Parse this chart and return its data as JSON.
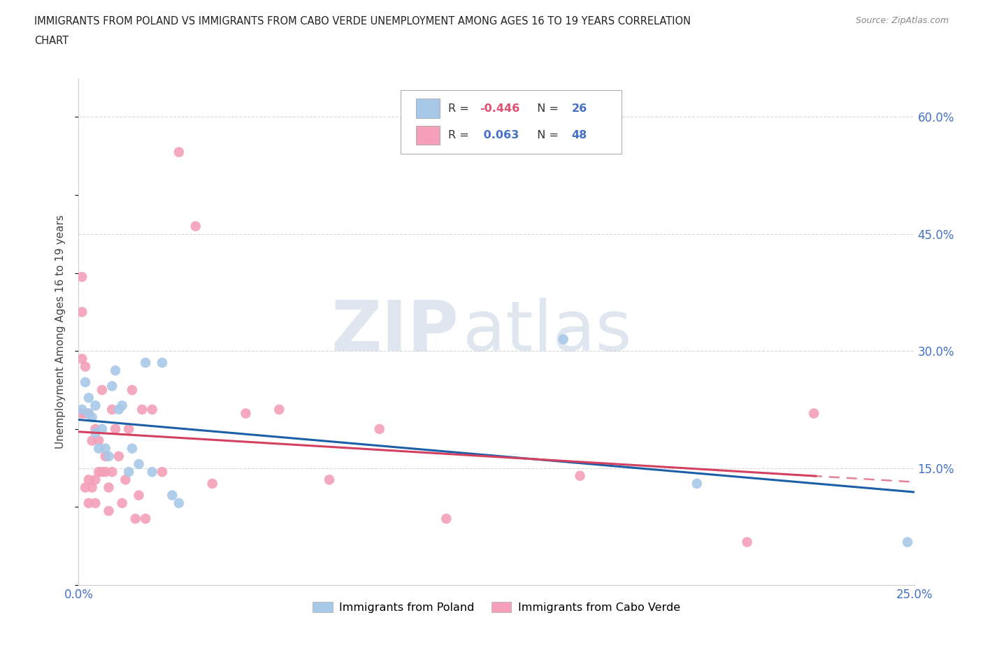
{
  "title_line1": "IMMIGRANTS FROM POLAND VS IMMIGRANTS FROM CABO VERDE UNEMPLOYMENT AMONG AGES 16 TO 19 YEARS CORRELATION",
  "title_line2": "CHART",
  "source": "Source: ZipAtlas.com",
  "ylabel": "Unemployment Among Ages 16 to 19 years",
  "xlim": [
    0.0,
    0.25
  ],
  "ylim": [
    0.0,
    0.65
  ],
  "yticks": [
    0.15,
    0.3,
    0.45,
    0.6
  ],
  "ytick_labels": [
    "15.0%",
    "30.0%",
    "45.0%",
    "60.0%"
  ],
  "xticks": [
    0.0,
    0.05,
    0.1,
    0.15,
    0.2,
    0.25
  ],
  "xtick_labels": [
    "0.0%",
    "",
    "",
    "",
    "",
    "25.0%"
  ],
  "poland_color": "#a8c8e8",
  "cabo_verde_color": "#f4a0b8",
  "poland_line_color": "#1a5fa8",
  "cabo_verde_line_color": "#d44060",
  "R_poland": -0.446,
  "N_poland": 26,
  "R_cabo_verde": 0.063,
  "N_cabo_verde": 48,
  "poland_x": [
    0.001,
    0.002,
    0.003,
    0.003,
    0.004,
    0.005,
    0.005,
    0.006,
    0.007,
    0.008,
    0.009,
    0.01,
    0.011,
    0.012,
    0.013,
    0.015,
    0.016,
    0.018,
    0.02,
    0.022,
    0.025,
    0.028,
    0.03,
    0.145,
    0.185,
    0.248
  ],
  "poland_y": [
    0.225,
    0.26,
    0.22,
    0.24,
    0.215,
    0.195,
    0.23,
    0.175,
    0.2,
    0.175,
    0.165,
    0.255,
    0.275,
    0.225,
    0.23,
    0.145,
    0.175,
    0.155,
    0.285,
    0.145,
    0.285,
    0.115,
    0.105,
    0.315,
    0.13,
    0.055
  ],
  "cabo_verde_x": [
    0.001,
    0.001,
    0.001,
    0.001,
    0.002,
    0.002,
    0.002,
    0.003,
    0.003,
    0.003,
    0.004,
    0.004,
    0.005,
    0.005,
    0.005,
    0.006,
    0.006,
    0.007,
    0.007,
    0.008,
    0.008,
    0.009,
    0.009,
    0.01,
    0.01,
    0.011,
    0.012,
    0.013,
    0.014,
    0.015,
    0.016,
    0.017,
    0.018,
    0.019,
    0.02,
    0.022,
    0.025,
    0.03,
    0.035,
    0.04,
    0.05,
    0.06,
    0.075,
    0.09,
    0.11,
    0.15,
    0.2,
    0.22
  ],
  "cabo_verde_y": [
    0.22,
    0.29,
    0.35,
    0.395,
    0.125,
    0.22,
    0.28,
    0.105,
    0.135,
    0.22,
    0.125,
    0.185,
    0.105,
    0.135,
    0.2,
    0.145,
    0.185,
    0.145,
    0.25,
    0.145,
    0.165,
    0.095,
    0.125,
    0.145,
    0.225,
    0.2,
    0.165,
    0.105,
    0.135,
    0.2,
    0.25,
    0.085,
    0.115,
    0.225,
    0.085,
    0.225,
    0.145,
    0.555,
    0.46,
    0.13,
    0.22,
    0.225,
    0.135,
    0.2,
    0.085,
    0.14,
    0.055,
    0.22
  ],
  "background_color": "#ffffff",
  "grid_color": "#cccccc",
  "watermark_zip": "ZIP",
  "watermark_atlas": "atlas",
  "watermark_color": "#ccd8e8",
  "tick_color": "#4472c4",
  "legend_R_color": "#e05070",
  "legend_N_color": "#4472c4"
}
